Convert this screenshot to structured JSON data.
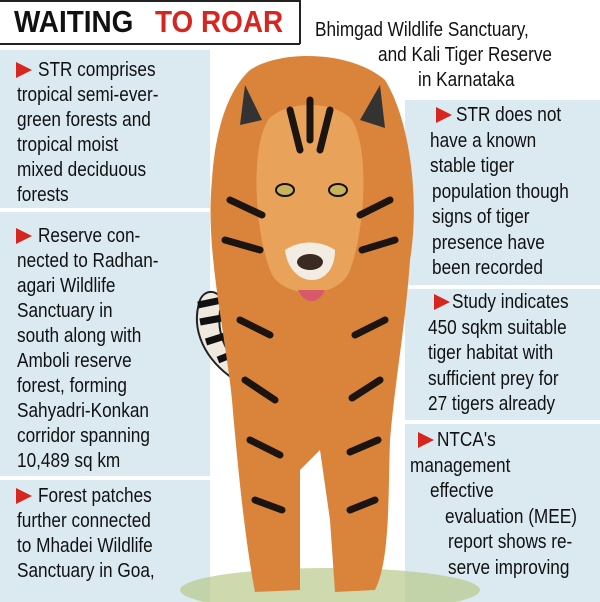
{
  "title": {
    "part1": "WAITING",
    "part2": "TO ROAR"
  },
  "left_panels": [
    {
      "lines": [
        "STR comprises",
        "tropical semi-ever-",
        "green forests and",
        "tropical moist",
        "mixed deciduous",
        "forests"
      ]
    },
    {
      "lines": [
        "Reserve con-",
        "nected to Radhan-",
        "agari Wildlife",
        "Sanctuary in",
        "south along with",
        "Amboli reserve",
        "forest, forming",
        "Sahyadri-Konkan",
        "corridor spanning",
        "10,489 sq km"
      ]
    },
    {
      "lines": [
        "Forest patches",
        "further connected",
        "to Mhadei Wildlife",
        "Sanctuary in Goa,"
      ]
    }
  ],
  "right_intro": {
    "lines": [
      "Bhimgad Wildlife Sanctuary,",
      "and Kali Tiger Reserve",
      "in Karnataka"
    ]
  },
  "right_panels": [
    {
      "lines": [
        "STR does not",
        "have a known",
        "stable tiger",
        "population though",
        "signs of tiger",
        "presence have",
        "been recorded"
      ]
    },
    {
      "lines": [
        "Study indicates",
        "450 sqkm suitable",
        "tiger habitat with",
        "sufficient prey for",
        "27 tigers already"
      ]
    },
    {
      "lines": [
        "NTCA's",
        "management",
        "effective",
        "evaluation (MEE)",
        "report shows re-",
        "serve improving"
      ]
    }
  ]
}
